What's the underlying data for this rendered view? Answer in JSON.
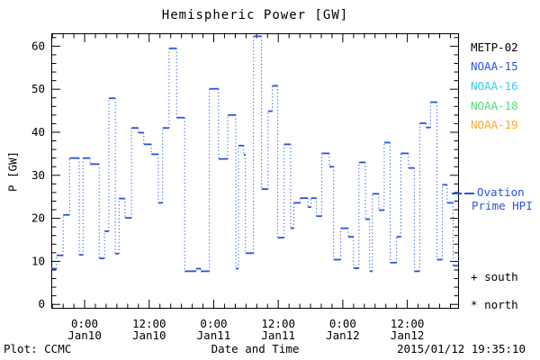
{
  "title": "Hemispheric Power [GW]",
  "legend": {
    "satellites": [
      {
        "label": "METP-02",
        "color": "#000000"
      },
      {
        "label": "NOAA-15",
        "color": "#2a52e0"
      },
      {
        "label": "NOAA-16",
        "color": "#33ccee"
      },
      {
        "label": "NOAA-18",
        "color": "#55dd77"
      },
      {
        "label": "NOAA-19",
        "color": "#ffaa22"
      }
    ],
    "model_line": {
      "line1": "Ovation",
      "line2": "Prime HPI",
      "color": "#2a52e0"
    },
    "markers": [
      {
        "symbol": "+",
        "label": "south"
      },
      {
        "symbol": "*",
        "label": "north"
      }
    ]
  },
  "footer": {
    "left": "Plot: CCMC",
    "timestamp": "2015/01/12 19:35:10"
  },
  "chart_data": {
    "type": "line",
    "subtype": "step-plot-with-dotted-risers",
    "title": "Hemispheric Power [GW]",
    "xlabel": "Date and Time",
    "ylabel": "P [GW]",
    "series_name": "Ovation Prime HPI",
    "line_color": "#2a52e0",
    "x_unit": "hours since 2015-01-10 00:00",
    "xlim": [
      -6.2,
      69.6
    ],
    "ylim": [
      -1,
      63
    ],
    "y_major_ticks": [
      0,
      10,
      20,
      30,
      40,
      50,
      60
    ],
    "y_minor_step": 2,
    "x_major_ticks": [
      {
        "t": 0,
        "time": "0:00",
        "date": "Jan10"
      },
      {
        "t": 12,
        "time": "12:00",
        "date": "Jan10"
      },
      {
        "t": 24,
        "time": "0:00",
        "date": "Jan11"
      },
      {
        "t": 36,
        "time": "12:00",
        "date": "Jan11"
      },
      {
        "t": 48,
        "time": "0:00",
        "date": "Jan12"
      },
      {
        "t": 60,
        "time": "12:00",
        "date": "Jan12"
      }
    ],
    "x_minor_step": 2,
    "grid": false,
    "legend_position": "right-outside",
    "t_end": 69.6,
    "steps": [
      [
        -6.2,
        8.3
      ],
      [
        -5.2,
        11.4
      ],
      [
        -4.0,
        20.8
      ],
      [
        -2.8,
        34.0
      ],
      [
        -1.0,
        11.5
      ],
      [
        -0.3,
        34.0
      ],
      [
        1.0,
        32.6
      ],
      [
        2.7,
        10.7
      ],
      [
        3.7,
        17.0
      ],
      [
        4.5,
        47.9
      ],
      [
        5.7,
        11.8
      ],
      [
        6.4,
        24.6
      ],
      [
        7.5,
        20.1
      ],
      [
        8.7,
        41.0
      ],
      [
        10.0,
        39.9
      ],
      [
        11.0,
        37.2
      ],
      [
        12.4,
        34.9
      ],
      [
        13.7,
        23.6
      ],
      [
        14.5,
        41.0
      ],
      [
        15.7,
        59.5
      ],
      [
        17.1,
        43.4
      ],
      [
        18.6,
        7.7
      ],
      [
        20.7,
        8.3
      ],
      [
        21.6,
        7.7
      ],
      [
        23.2,
        50.1
      ],
      [
        24.9,
        33.8
      ],
      [
        26.6,
        44.0
      ],
      [
        28.1,
        8.3
      ],
      [
        28.6,
        36.9
      ],
      [
        29.6,
        34.8
      ],
      [
        29.9,
        11.9
      ],
      [
        31.4,
        62.3
      ],
      [
        32.9,
        26.8
      ],
      [
        34.1,
        44.9
      ],
      [
        34.9,
        50.8
      ],
      [
        35.9,
        15.5
      ],
      [
        37.1,
        37.2
      ],
      [
        38.3,
        17.7
      ],
      [
        38.9,
        23.6
      ],
      [
        40.1,
        24.7
      ],
      [
        41.5,
        22.6
      ],
      [
        42.1,
        24.7
      ],
      [
        43.1,
        20.5
      ],
      [
        44.1,
        35.1
      ],
      [
        45.5,
        32.0
      ],
      [
        46.3,
        10.4
      ],
      [
        47.6,
        17.7
      ],
      [
        49.0,
        15.7
      ],
      [
        50.0,
        8.4
      ],
      [
        51.0,
        33.0
      ],
      [
        52.2,
        19.8
      ],
      [
        53.0,
        7.7
      ],
      [
        53.5,
        25.7
      ],
      [
        54.7,
        21.9
      ],
      [
        55.7,
        37.6
      ],
      [
        56.8,
        9.7
      ],
      [
        58.0,
        15.7
      ],
      [
        58.8,
        35.1
      ],
      [
        60.2,
        31.7
      ],
      [
        61.3,
        7.7
      ],
      [
        62.3,
        42.1
      ],
      [
        63.5,
        41.1
      ],
      [
        64.3,
        47.0
      ],
      [
        65.5,
        10.4
      ],
      [
        66.5,
        27.8
      ],
      [
        67.4,
        23.6
      ],
      [
        68.5,
        9.0
      ],
      [
        69.4,
        10.1
      ]
    ]
  }
}
